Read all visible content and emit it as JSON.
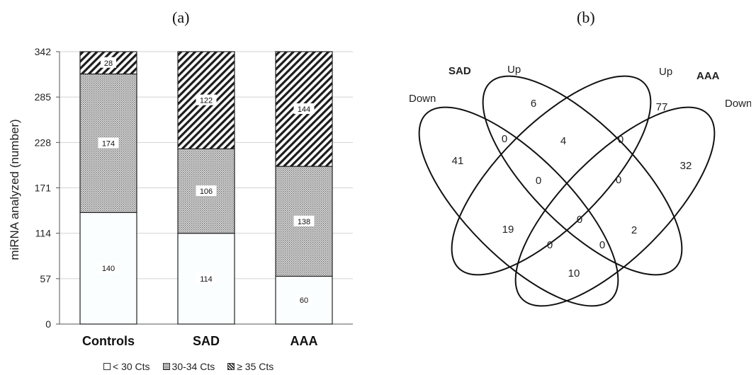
{
  "panels": {
    "a_label": "(a)",
    "b_label": "(b)"
  },
  "chart_data": [
    {
      "type": "bar",
      "stacked": true,
      "title": "",
      "xlabel": "",
      "ylabel": "miRNA analyzed (number)",
      "ylim": [
        0,
        342
      ],
      "yticks": [
        "0",
        "57",
        "114",
        "171",
        "228",
        "285",
        "342"
      ],
      "categories": [
        "Controls",
        "SAD",
        "AAA"
      ],
      "series": [
        {
          "name": "< 30 Cts",
          "values": [
            140,
            114,
            60
          ],
          "pattern": "white",
          "color": "#ffffff"
        },
        {
          "name": "30-34 Cts",
          "values": [
            174,
            106,
            138
          ],
          "pattern": "dotted",
          "color": "#d8d8d8"
        },
        {
          "name": "≥ 35 Cts",
          "values": [
            28,
            122,
            144
          ],
          "pattern": "hatched",
          "color": "#222222"
        }
      ],
      "grid": true,
      "legend_placement": "bottom"
    },
    {
      "type": "venn",
      "set_labels": [
        "SAD",
        "AAA"
      ],
      "ellipse_labels": [
        "Down",
        "Up",
        "Up",
        "Down"
      ],
      "region_values": [
        "41",
        "6",
        "77",
        "32",
        "0",
        "4",
        "0",
        "0",
        "0",
        "19",
        "0",
        "2",
        "0",
        "0",
        "10"
      ]
    }
  ]
}
